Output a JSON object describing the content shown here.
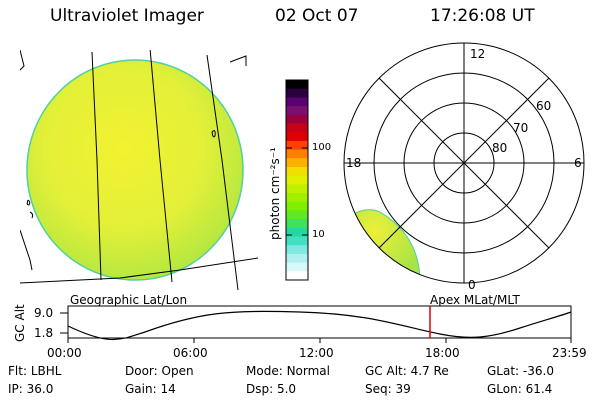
{
  "header": {
    "instrument": "Ultraviolet Imager",
    "date": "02 Oct 07",
    "time": "17:26:08 UT"
  },
  "colorbar": {
    "unit_label": "photon cm⁻²s⁻¹",
    "tick_labels": [
      "100",
      "10"
    ],
    "colors": [
      "#000000",
      "#2b0040",
      "#5a0070",
      "#7a1070",
      "#9a0040",
      "#c80018",
      "#e00000",
      "#ff4000",
      "#ff8000",
      "#ffb000",
      "#f0e000",
      "#e0f000",
      "#c0f000",
      "#a0f000",
      "#80f000",
      "#60e820",
      "#40e060",
      "#20d8a0",
      "#40e0c0",
      "#80e8e0",
      "#b0f0f0",
      "#d8f8f8",
      "#ffffff"
    ]
  },
  "polar_plot": {
    "hour_labels": [
      "12",
      "18",
      "6",
      "0"
    ],
    "lat_labels": [
      "60",
      "70",
      "80"
    ]
  },
  "timeline": {
    "left_title": "Geographic Lat/Lon",
    "right_title": "Apex MLat/MLT",
    "y_axis_label": "GC Alt",
    "y_ticks": [
      "9.0",
      "1.8"
    ],
    "x_ticks": [
      "00:00",
      "06:00",
      "12:00",
      "18:00",
      "23:59"
    ],
    "marker_color": "#e00000",
    "marker_time": "17:26"
  },
  "info": {
    "row1": [
      {
        "label": "Flt:",
        "value": "LBHL"
      },
      {
        "label": "Door:",
        "value": "Open"
      },
      {
        "label": "Mode:",
        "value": "Normal"
      },
      {
        "label": "GC Alt:",
        "value": "4.7 Re"
      },
      {
        "label": "GLat:",
        "value": "-36.0"
      }
    ],
    "row2": [
      {
        "label": "IP:",
        "value": "36.0"
      },
      {
        "label": "Gain:",
        "value": "14"
      },
      {
        "label": "Dsp:",
        "value": "5.0"
      },
      {
        "label": "Seq:",
        "value": "39"
      },
      {
        "label": "GLon:",
        "value": "61.4"
      }
    ]
  }
}
